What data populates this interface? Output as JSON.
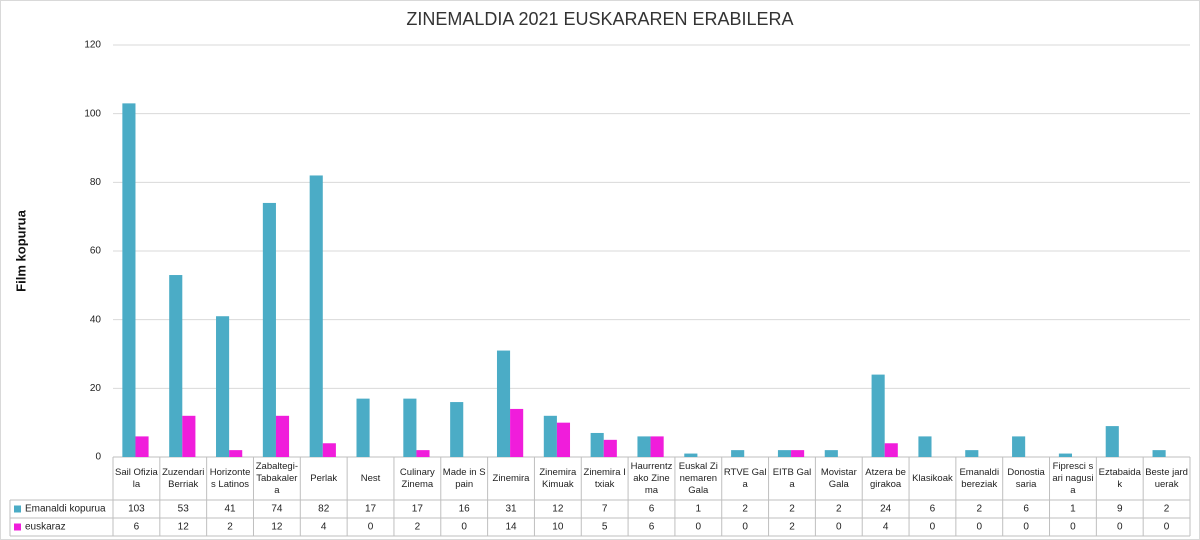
{
  "chart_data": {
    "type": "bar",
    "title": "ZINEMALDIA 2021 EUSKARAREN ERABILERA",
    "y_label": "Film kopurua",
    "categories": [
      "Sail Ofiziala",
      "Zuzendari Berriak",
      "Horizontes Latinos",
      "Zabaltegi-Tabakalera",
      "Perlak",
      "Nest",
      "Culinary Zinema",
      "Made in Spain",
      "Zinemira",
      "Zinemira Kimuak",
      "Zinemira Itxiak",
      "Haurrentzako Zinema",
      "Euskal Zinemaren Gala",
      "RTVE Gala",
      "EITB Gala",
      "Movistar Gala",
      "Atzera begirakoa",
      "Klasikoak",
      "Emanaldi bereziak",
      "Donostia saria",
      "Fipresci sari nagusia",
      "Eztabaidak",
      "Beste jarduerak"
    ],
    "series": [
      {
        "name": "Emanaldi kopurua",
        "color": "#4bacc6",
        "values": [
          103,
          53,
          41,
          74,
          82,
          17,
          17,
          16,
          31,
          12,
          7,
          6,
          1,
          2,
          2,
          2,
          24,
          6,
          2,
          6,
          1,
          9,
          2
        ]
      },
      {
        "name": "euskaraz",
        "color": "#f01ddb",
        "values": [
          6,
          12,
          2,
          12,
          4,
          0,
          2,
          0,
          14,
          10,
          5,
          6,
          0,
          0,
          2,
          0,
          4,
          0,
          0,
          0,
          0,
          0,
          0
        ]
      }
    ],
    "ylim": [
      0,
      120
    ],
    "yticks": [
      0,
      20,
      40,
      60,
      80,
      100,
      120
    ],
    "grid": true
  }
}
